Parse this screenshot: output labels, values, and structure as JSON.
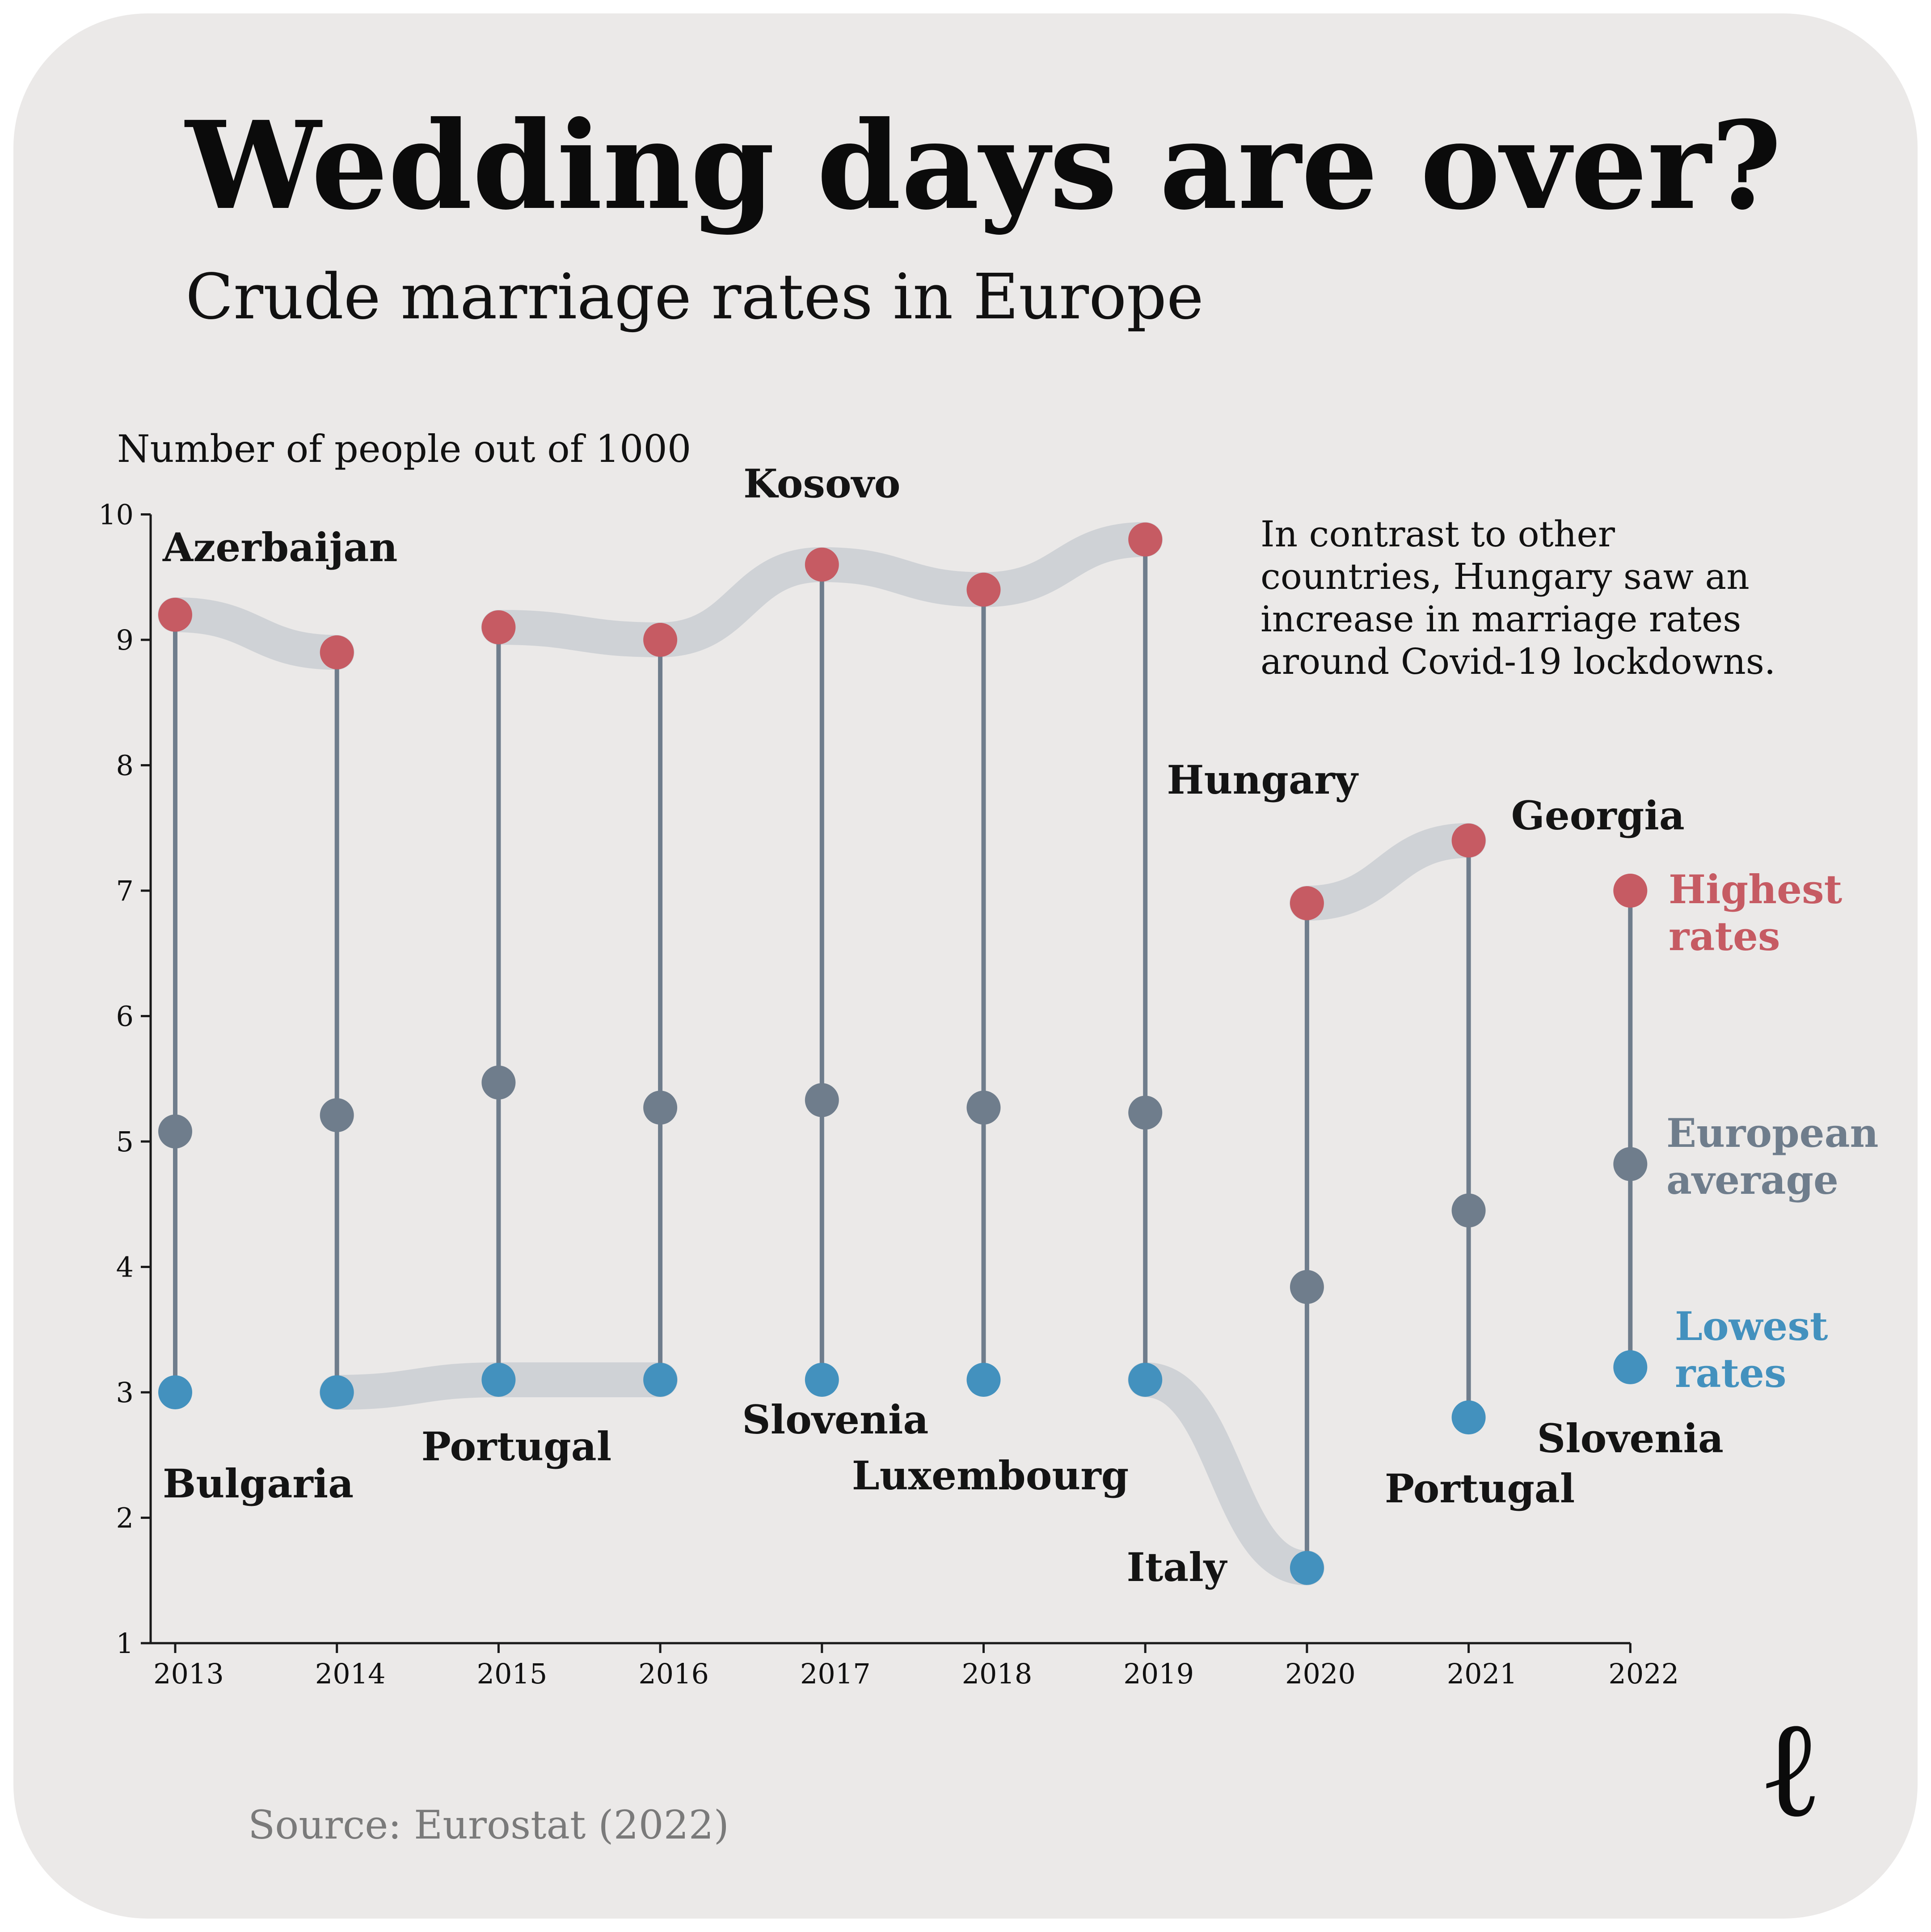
{
  "title": "Wedding days are over?",
  "subtitle": "Crude marriage rates in Europe",
  "source": "Source: Eurostat (2022)",
  "logo": "ℓ",
  "note": {
    "lines": [
      "In contrast to other",
      "countries, Hungary saw an",
      "increase in marriage rates",
      "around Covid-19 lockdowns."
    ]
  },
  "legend": {
    "highest": [
      "Highest",
      "rates"
    ],
    "average": [
      "European",
      "average"
    ],
    "lowest": [
      "Lowest",
      "rates"
    ]
  },
  "colors": {
    "highest": "#c65b63",
    "average": "#6f7d8c",
    "lowest": "#4391be",
    "stem": "#6f7d8c",
    "ribbon": "#cfd2d6",
    "axis": "#1a1a1a"
  },
  "chart_data": {
    "type": "dot_range",
    "ylabel": "Number of people out of 1000",
    "ylim": [
      1,
      10
    ],
    "yticks": [
      1,
      2,
      3,
      4,
      5,
      6,
      7,
      8,
      9,
      10
    ],
    "x": [
      "2013",
      "2014",
      "2015",
      "2016",
      "2017",
      "2018",
      "2019",
      "2020",
      "2021",
      "2022"
    ],
    "series": [
      {
        "name": "Highest rates",
        "values": [
          9.2,
          8.9,
          9.1,
          9.0,
          9.6,
          9.4,
          9.8,
          6.9,
          7.4,
          7.0
        ]
      },
      {
        "name": "European average",
        "values": [
          5.08,
          5.21,
          5.47,
          5.27,
          5.33,
          5.27,
          5.23,
          3.84,
          4.45,
          4.82
        ]
      },
      {
        "name": "Lowest rates",
        "values": [
          3.0,
          3.0,
          3.1,
          3.1,
          3.1,
          3.1,
          3.1,
          1.6,
          2.8,
          3.2
        ]
      }
    ],
    "annotations": [
      {
        "label": "Azerbaijan",
        "year": "2013",
        "series": "Highest rates"
      },
      {
        "label": "Kosovo",
        "year": "2017",
        "series": "Highest rates"
      },
      {
        "label": "Hungary",
        "year": "2020",
        "series": "Highest rates"
      },
      {
        "label": "Georgia",
        "year": "2021",
        "series": "Highest rates"
      },
      {
        "label": "Bulgaria",
        "year": "2013",
        "series": "Lowest rates"
      },
      {
        "label": "Portugal",
        "year": "2015",
        "series": "Lowest rates"
      },
      {
        "label": "Slovenia",
        "year": "2017",
        "series": "Lowest rates"
      },
      {
        "label": "Luxembourg",
        "year": "2018",
        "series": "Lowest rates"
      },
      {
        "label": "Italy",
        "year": "2019",
        "series": "Lowest rates"
      },
      {
        "label": "Portugal",
        "year": "2021",
        "series": "Lowest rates"
      },
      {
        "label": "Slovenia",
        "year": "2022",
        "series": "Lowest rates"
      }
    ],
    "ribbons": [
      {
        "series": "Highest rates",
        "years": [
          "2013",
          "2014"
        ]
      },
      {
        "series": "Highest rates",
        "years": [
          "2015",
          "2016",
          "2017",
          "2018",
          "2019"
        ]
      },
      {
        "series": "Highest rates",
        "years": [
          "2020",
          "2021"
        ]
      },
      {
        "series": "Lowest rates",
        "years": [
          "2014",
          "2015",
          "2016"
        ]
      },
      {
        "series": "Lowest rates",
        "years": [
          "2019",
          "2020"
        ]
      }
    ]
  }
}
